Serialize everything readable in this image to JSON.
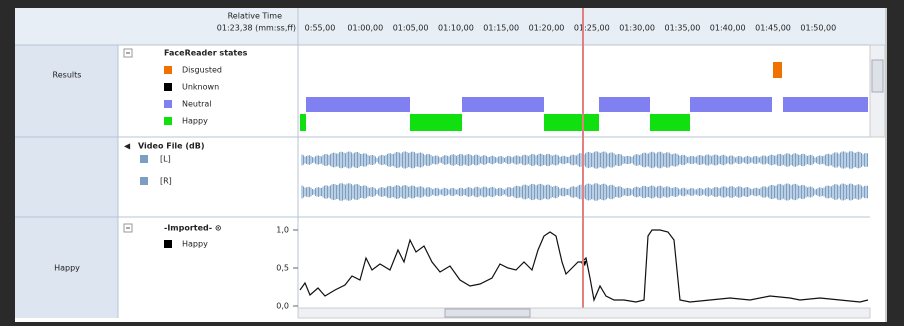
{
  "header": {
    "relative_time": "Relative Time",
    "current_time": "01:23,38 (mm:ss,ff)",
    "ticks": [
      "0:55,00",
      "01:00,00",
      "01:05,00",
      "01:10,00",
      "01:15,00",
      "01:20,00",
      "01:25,00",
      "01:30,00",
      "01:35,00",
      "01:40,00",
      "01:45,00",
      "01:50,00"
    ]
  },
  "rows": [
    {
      "label": "Results",
      "group": "FaceReader states",
      "legend": [
        "Disgusted",
        "Unknown",
        "Neutral",
        "Happy"
      ]
    },
    {
      "group": "Video File (dB)",
      "legend": [
        "[L]",
        "[R]"
      ]
    },
    {
      "label": "Happy",
      "group": "-Imported- ⊙",
      "legend": [
        "Happy"
      ],
      "yticks": [
        "1,0",
        "0,5",
        "0,0"
      ]
    }
  ]
}
